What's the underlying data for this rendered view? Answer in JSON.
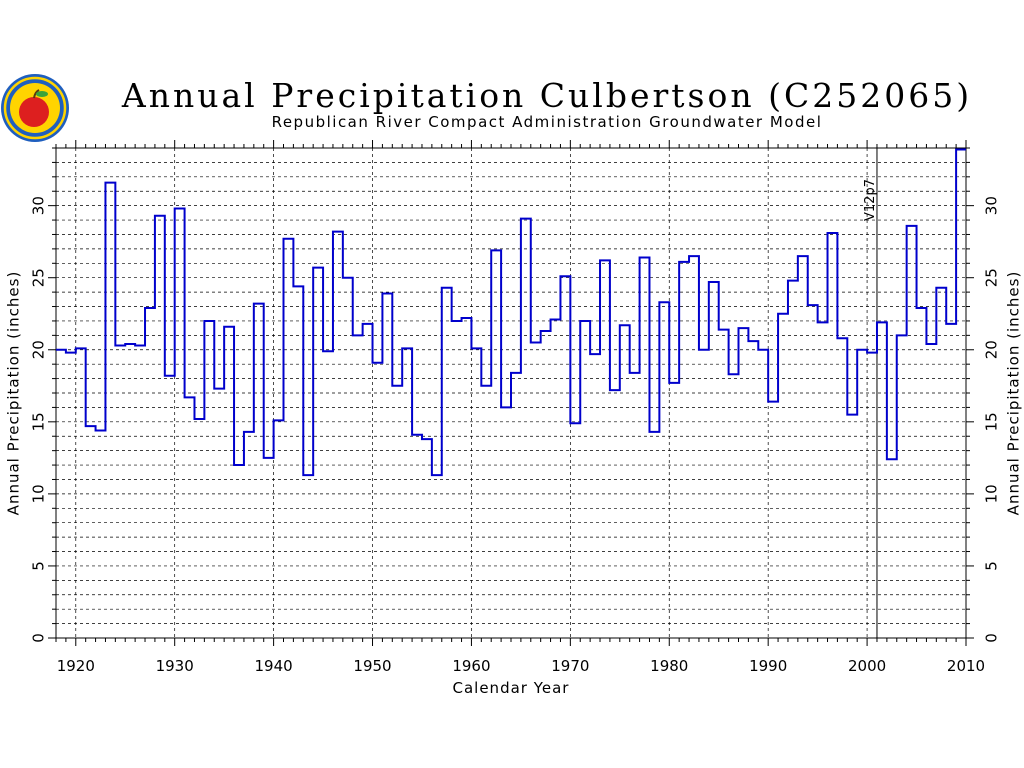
{
  "chart_data": {
    "type": "line",
    "step": true,
    "title": "Annual Precipitation Culbertson (C252065)",
    "subtitle": "Republican River Compact Administration Groundwater Model",
    "xlabel": "Calendar Year",
    "ylabel": "Annual Precipitation (inches)",
    "ylabel_right": "Annual Precipitation (inches)",
    "xlim": [
      1918,
      2010
    ],
    "ylim": [
      0,
      34
    ],
    "x_ticks": [
      1920,
      1930,
      1940,
      1950,
      1960,
      1970,
      1980,
      1990,
      2000,
      2010
    ],
    "y_ticks": [
      0,
      5,
      10,
      15,
      20,
      25,
      30
    ],
    "grid": true,
    "annotation": {
      "text": "V12p7",
      "x": 2001
    },
    "series_color": "#0000cc",
    "series": [
      {
        "x": [
          1918,
          1919,
          1920,
          1921,
          1922,
          1923,
          1924,
          1925,
          1926,
          1927,
          1928,
          1929,
          1930,
          1931,
          1932,
          1933,
          1934,
          1935,
          1936,
          1937,
          1938,
          1939,
          1940,
          1941,
          1942,
          1943,
          1944,
          1945,
          1946,
          1947,
          1948,
          1949,
          1950,
          1951,
          1952,
          1953,
          1954,
          1955,
          1956,
          1957,
          1958,
          1959,
          1960,
          1961,
          1962,
          1963,
          1964,
          1965,
          1966,
          1967,
          1968,
          1969,
          1970,
          1971,
          1972,
          1973,
          1974,
          1975,
          1976,
          1977,
          1978,
          1979,
          1980,
          1981,
          1982,
          1983,
          1984,
          1985,
          1986,
          1987,
          1988,
          1989,
          1990,
          1991,
          1992,
          1993,
          1994,
          1995,
          1996,
          1997,
          1998,
          1999,
          2000,
          2001,
          2002,
          2003,
          2004,
          2005,
          2006,
          2007,
          2008,
          2009
        ],
        "y": [
          20.0,
          19.8,
          20.1,
          14.7,
          14.4,
          31.6,
          20.3,
          20.4,
          20.3,
          22.9,
          29.3,
          18.2,
          29.8,
          16.7,
          15.2,
          22.0,
          17.3,
          21.6,
          12.0,
          14.3,
          23.2,
          12.5,
          15.1,
          27.7,
          24.4,
          11.3,
          25.7,
          19.9,
          28.2,
          25.0,
          21.0,
          21.8,
          19.1,
          23.9,
          17.5,
          20.1,
          14.1,
          13.8,
          11.3,
          24.3,
          22.0,
          22.2,
          20.1,
          17.5,
          26.9,
          16.0,
          18.4,
          29.1,
          20.5,
          21.3,
          22.1,
          25.1,
          14.9,
          22.0,
          19.7,
          26.2,
          17.2,
          21.7,
          18.4,
          26.4,
          14.3,
          23.3,
          17.7,
          26.1,
          26.5,
          20.0,
          24.7,
          21.4,
          18.3,
          21.5,
          20.6,
          20.0,
          16.4,
          22.5,
          24.8,
          26.5,
          23.1,
          21.9,
          28.1,
          20.8,
          15.5,
          20.0,
          19.8,
          21.9,
          12.4,
          21.0,
          28.6,
          22.9,
          20.4,
          24.3,
          21.8,
          33.9
        ]
      }
    ]
  },
  "logo": {
    "name": "seal-logo"
  }
}
